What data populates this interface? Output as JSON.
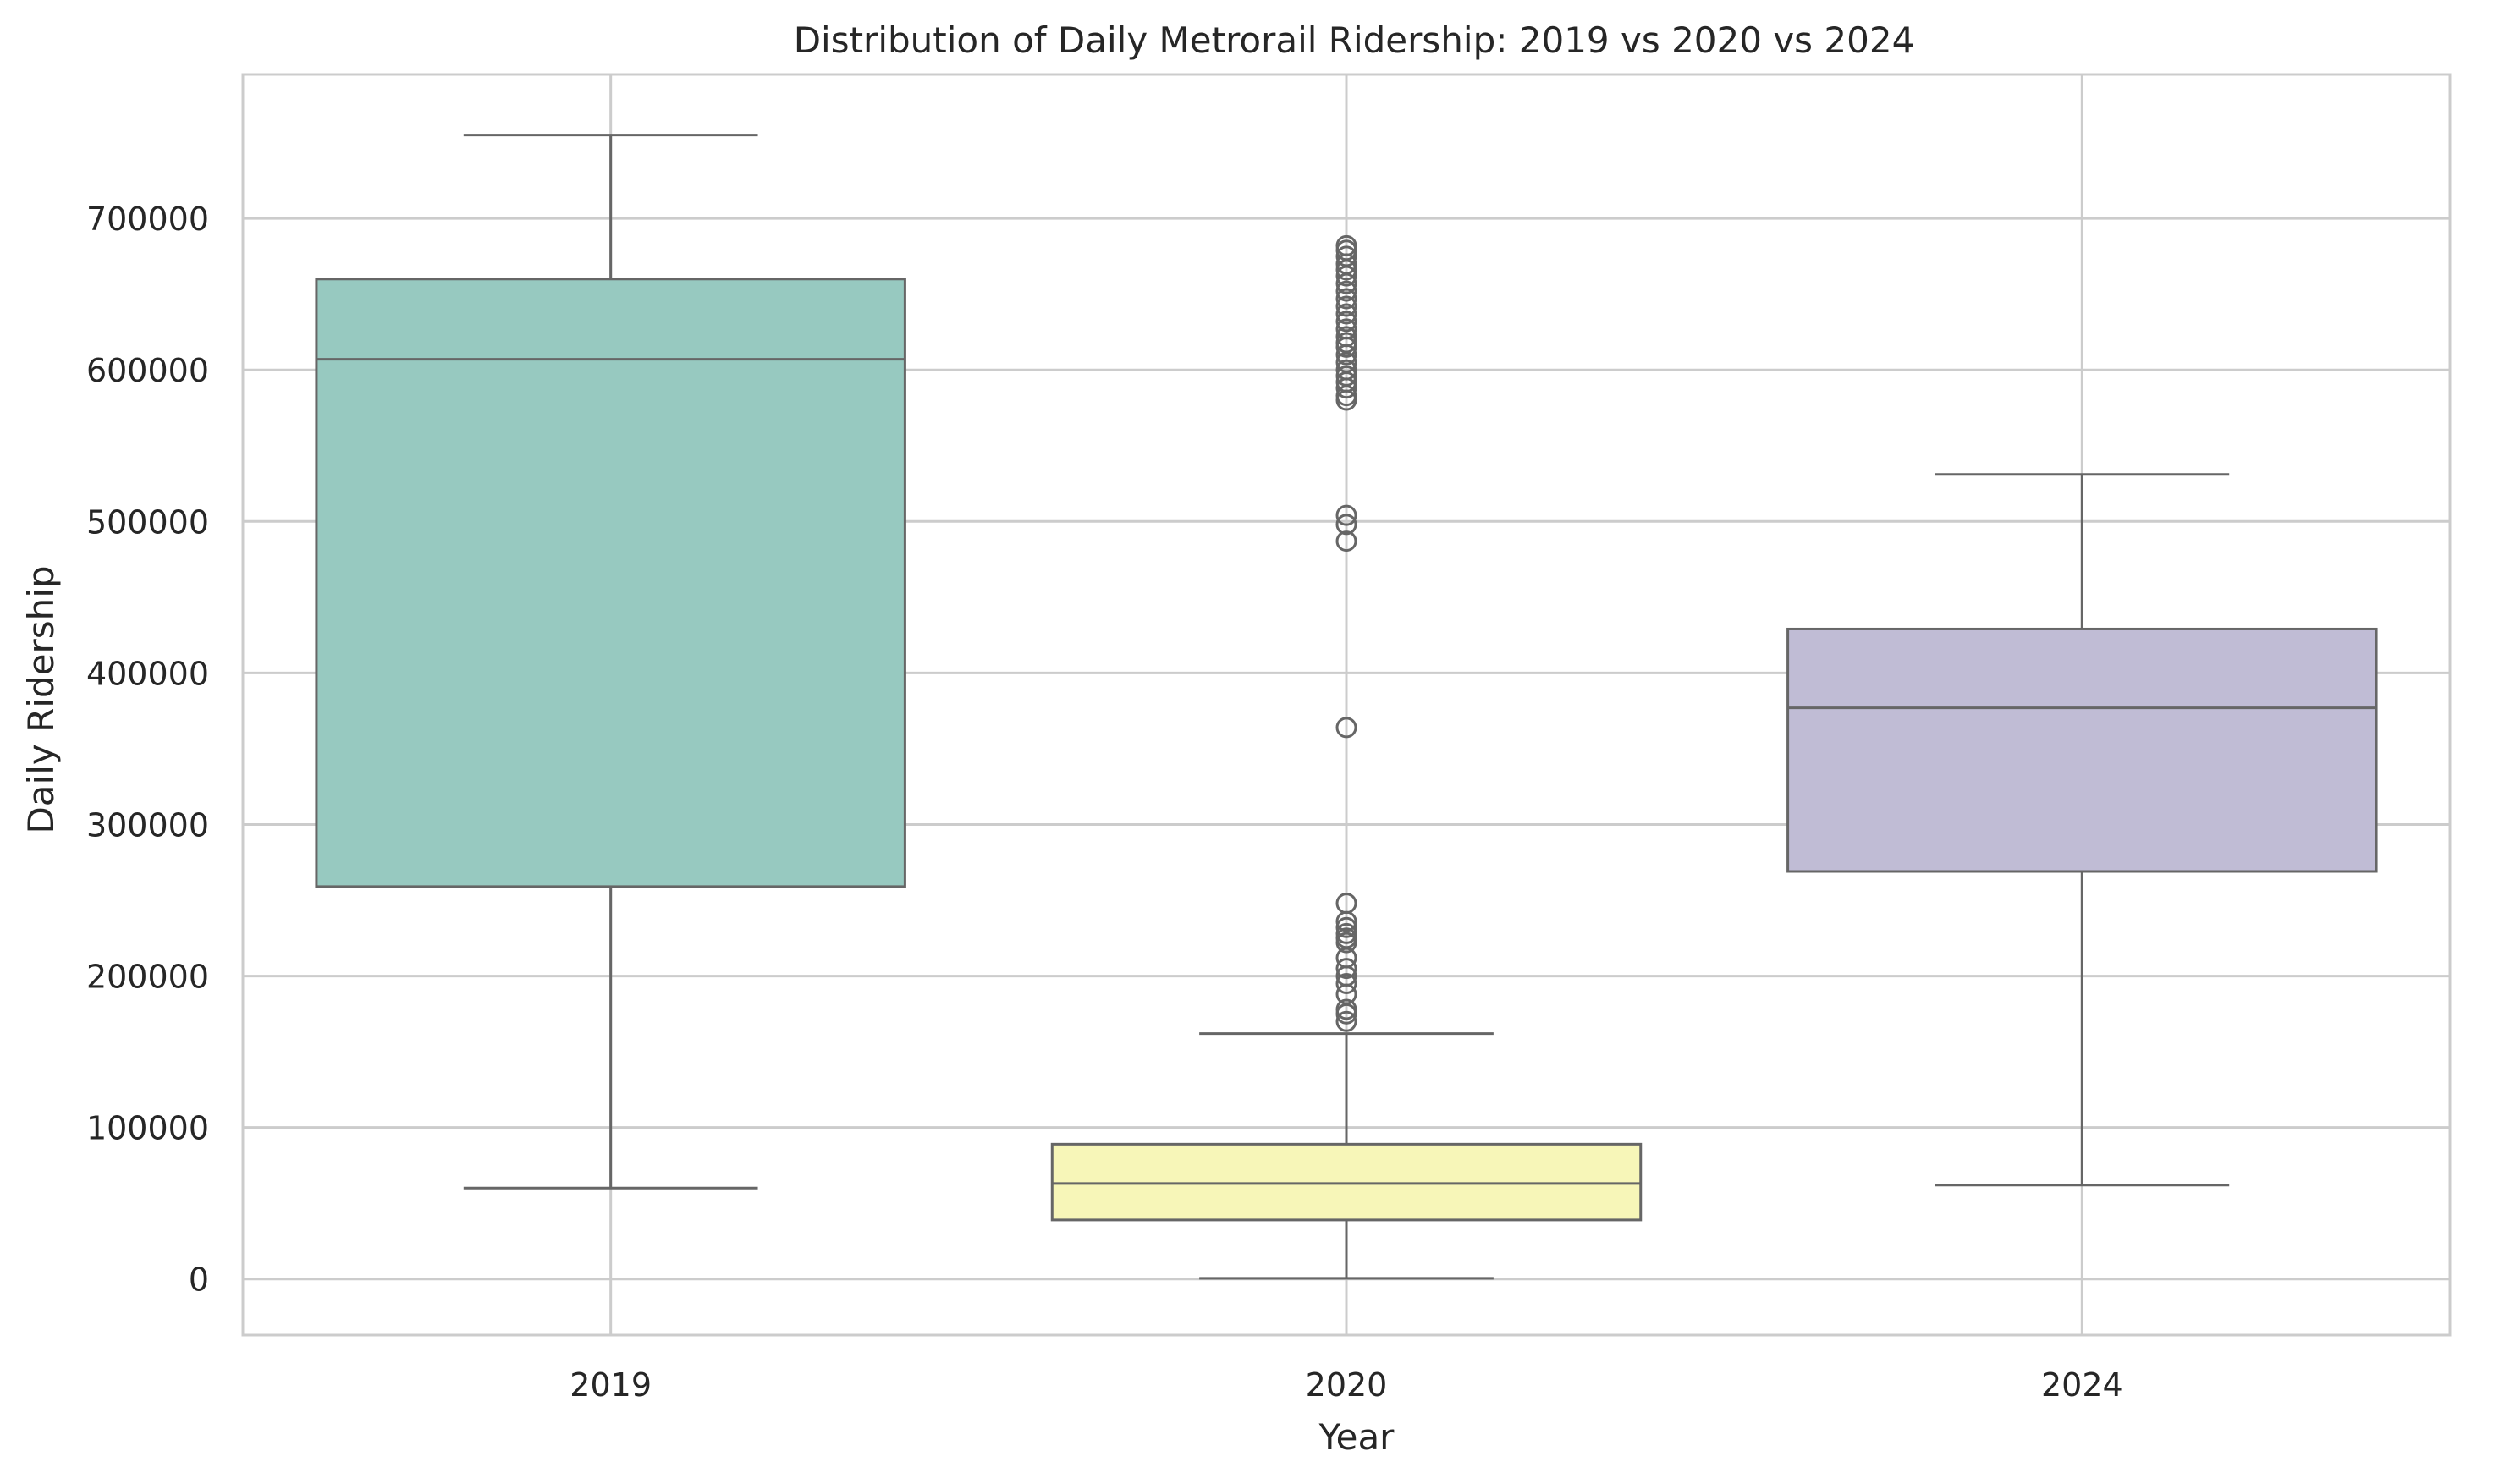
{
  "chart_data": {
    "type": "box",
    "title": "Distribution of Daily Metrorail Ridership: 2019 vs 2020 vs 2024",
    "xlabel": "Year",
    "ylabel": "Daily Ridership",
    "categories": [
      "2019",
      "2020",
      "2024"
    ],
    "ylim": [
      -37000,
      795000
    ],
    "yticks": [
      0,
      100000,
      200000,
      300000,
      400000,
      500000,
      600000,
      700000
    ],
    "ytick_labels": [
      "0",
      "100000",
      "200000",
      "300000",
      "400000",
      "500000",
      "600000",
      "700000"
    ],
    "grid": true,
    "boxes": [
      {
        "category": "2019",
        "color": "#97c9c0",
        "whisker_low": 60000,
        "q1": 259000,
        "median": 607000,
        "q3": 660000,
        "whisker_high": 755000,
        "outliers": []
      },
      {
        "category": "2020",
        "color": "#f7f6b8",
        "whisker_low": 500,
        "q1": 39000,
        "median": 63000,
        "q3": 89000,
        "whisker_high": 162000,
        "outliers": [
          170000,
          175000,
          178000,
          188000,
          195000,
          200000,
          205000,
          212000,
          222000,
          225000,
          228000,
          232000,
          236000,
          248000,
          364000,
          487000,
          498000,
          504000,
          580000,
          583000,
          588000,
          592000,
          596000,
          600000,
          605000,
          610000,
          615000,
          618000,
          622000,
          627000,
          632000,
          637000,
          642000,
          647000,
          652000,
          657000,
          662000,
          666000,
          670000,
          675000,
          679000,
          682000
        ]
      },
      {
        "category": "2024",
        "color": "#c0bcd5",
        "whisker_low": 62000,
        "q1": 269000,
        "median": 377000,
        "q3": 429000,
        "whisker_high": 531000,
        "outliers": []
      }
    ]
  }
}
